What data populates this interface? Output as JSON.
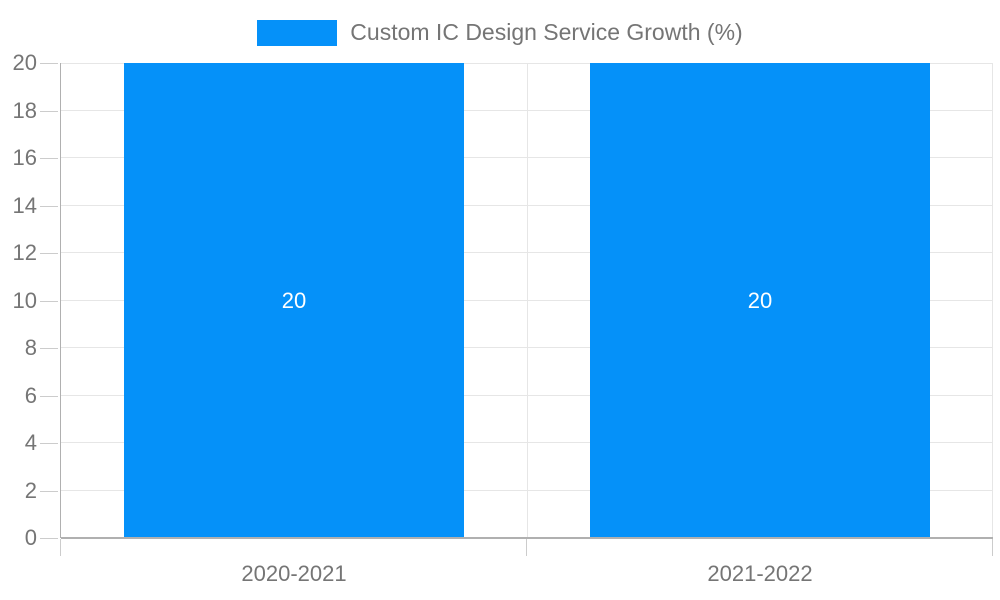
{
  "chart_data": {
    "type": "bar",
    "title": "Custom IC Design Service Growth (%)",
    "categories": [
      "2020-2021",
      "2021-2022"
    ],
    "series": [
      {
        "name": "Custom IC Design Service Growth (%)",
        "values": [
          20,
          20
        ]
      }
    ],
    "bar_value_labels": [
      "20",
      "20"
    ],
    "xlabel": "",
    "ylabel": "",
    "ylim": [
      0,
      20
    ],
    "yticks": [
      0,
      2,
      4,
      6,
      8,
      10,
      12,
      14,
      16,
      18,
      20
    ],
    "grid": true,
    "legend_position": "top-center"
  },
  "legend": {
    "label": "Custom IC Design Service Growth (%)"
  },
  "colors": {
    "bar": "#0591f9",
    "grid": "#e6e6e6",
    "axis": "#b0b0b0",
    "tick": "#cccccc",
    "text": "#757575",
    "value_label": "#ffffff"
  }
}
